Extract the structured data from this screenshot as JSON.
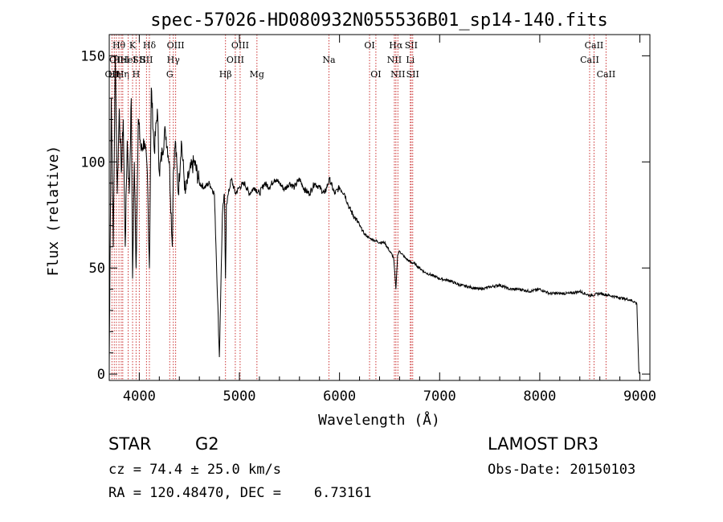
{
  "chart_data": {
    "type": "line",
    "title": "spec-57026-HD080932N055536B01_sp14-140.fits",
    "xlabel": "Wavelength (Å)",
    "ylabel": "Flux (relative)",
    "xlim": [
      3700,
      9100
    ],
    "ylim": [
      -3,
      160
    ],
    "xticks": [
      4000,
      5000,
      6000,
      7000,
      8000,
      9000
    ],
    "yticks": [
      0,
      50,
      100,
      150
    ],
    "grid": false,
    "series": [
      {
        "name": "spectrum",
        "color": "#000000",
        "x": [
          3700,
          3720,
          3740,
          3760,
          3780,
          3800,
          3820,
          3840,
          3860,
          3880,
          3900,
          3920,
          3933,
          3950,
          3968,
          3990,
          4020,
          4050,
          4080,
          4101,
          4120,
          4150,
          4180,
          4200,
          4230,
          4260,
          4300,
          4330,
          4340,
          4360,
          4390,
          4420,
          4460,
          4500,
          4550,
          4600,
          4650,
          4700,
          4750,
          4800,
          4830,
          4850,
          4861,
          4870,
          4890,
          4920,
          4960,
          5000,
          5050,
          5100,
          5150,
          5200,
          5250,
          5300,
          5350,
          5400,
          5450,
          5500,
          5550,
          5600,
          5650,
          5700,
          5750,
          5800,
          5850,
          5900,
          5950,
          6000,
          6050,
          6100,
          6150,
          6200,
          6250,
          6300,
          6350,
          6400,
          6450,
          6500,
          6540,
          6563,
          6580,
          6600,
          6650,
          6700,
          6750,
          6800,
          6850,
          6900,
          6950,
          7000,
          7100,
          7200,
          7300,
          7400,
          7500,
          7600,
          7700,
          7800,
          7900,
          8000,
          8100,
          8200,
          8300,
          8400,
          8500,
          8600,
          8700,
          8800,
          8900,
          8950,
          8970,
          8990,
          9000
        ],
        "y": [
          5,
          130,
          60,
          150,
          85,
          125,
          95,
          120,
          60,
          110,
          85,
          130,
          45,
          100,
          50,
          120,
          105,
          110,
          95,
          50,
          135,
          105,
          125,
          95,
          105,
          115,
          100,
          60,
          95,
          110,
          85,
          110,
          85,
          95,
          100,
          90,
          88,
          90,
          85,
          8,
          75,
          85,
          45,
          80,
          85,
          92,
          85,
          88,
          90,
          85,
          88,
          85,
          90,
          88,
          92,
          90,
          87,
          90,
          88,
          92,
          87,
          85,
          90,
          88,
          85,
          92,
          85,
          88,
          85,
          78,
          74,
          70,
          66,
          64,
          63,
          62,
          62,
          58,
          55,
          40,
          56,
          58,
          55,
          53,
          52,
          50,
          48,
          47,
          46,
          45,
          44,
          42,
          41,
          40,
          41,
          42,
          40,
          40,
          39,
          40,
          38,
          38,
          38,
          39,
          37,
          38,
          37,
          36,
          35,
          34,
          33,
          1,
          0
        ]
      }
    ],
    "lines": [
      {
        "wave": 3727,
        "row": 2,
        "label": "OII"
      },
      {
        "wave": 3750,
        "row": 2,
        "label": "Hη"
      },
      {
        "wave": 3771,
        "row": 1,
        "label": "OII"
      },
      {
        "wave": 3797,
        "row": 0,
        "label": "Hθ"
      },
      {
        "wave": 3820,
        "row": 1,
        "label": "HeI"
      },
      {
        "wave": 3835,
        "row": 2,
        "label": "Hη"
      },
      {
        "wave": 3889,
        "row": 1,
        "label": "HeI"
      },
      {
        "wave": 3933,
        "row": 0,
        "label": "K"
      },
      {
        "wave": 3968,
        "row": 2,
        "label": "H"
      },
      {
        "wave": 4000,
        "row": 1,
        "label": "SII"
      },
      {
        "wave": 4072,
        "row": 1,
        "label": "SII"
      },
      {
        "wave": 4101,
        "row": 0,
        "label": "Hδ"
      },
      {
        "wave": 4304,
        "row": 2,
        "label": "G"
      },
      {
        "wave": 4340,
        "row": 1,
        "label": "Hγ"
      },
      {
        "wave": 4363,
        "row": 0,
        "label": "OIII"
      },
      {
        "wave": 4861,
        "row": 2,
        "label": "Hβ"
      },
      {
        "wave": 4959,
        "row": 1,
        "label": "OIII"
      },
      {
        "wave": 5007,
        "row": 0,
        "label": "OIII"
      },
      {
        "wave": 5175,
        "row": 2,
        "label": "Mg"
      },
      {
        "wave": 5894,
        "row": 1,
        "label": "Na"
      },
      {
        "wave": 6300,
        "row": 0,
        "label": "OI"
      },
      {
        "wave": 6363,
        "row": 2,
        "label": "OI"
      },
      {
        "wave": 6548,
        "row": 1,
        "label": "NII"
      },
      {
        "wave": 6563,
        "row": 0,
        "label": "Hα"
      },
      {
        "wave": 6583,
        "row": 2,
        "label": "NII"
      },
      {
        "wave": 6707,
        "row": 1,
        "label": "Li"
      },
      {
        "wave": 6716,
        "row": 0,
        "label": "SII"
      },
      {
        "wave": 6731,
        "row": 2,
        "label": "SII"
      },
      {
        "wave": 8498,
        "row": 1,
        "label": "CaII"
      },
      {
        "wave": 8542,
        "row": 0,
        "label": "CaII"
      },
      {
        "wave": 8662,
        "row": 2,
        "label": "CaII"
      }
    ],
    "line_color": "#cc3333"
  },
  "info": {
    "class_label": "STAR",
    "subclass": "G2",
    "survey": "LAMOST DR3",
    "redshift": "cz = 74.4 ± 25.0 km/s",
    "obs_date": "Obs-Date: 20150103",
    "coords": "RA = 120.48470, DEC =    6.73161"
  }
}
